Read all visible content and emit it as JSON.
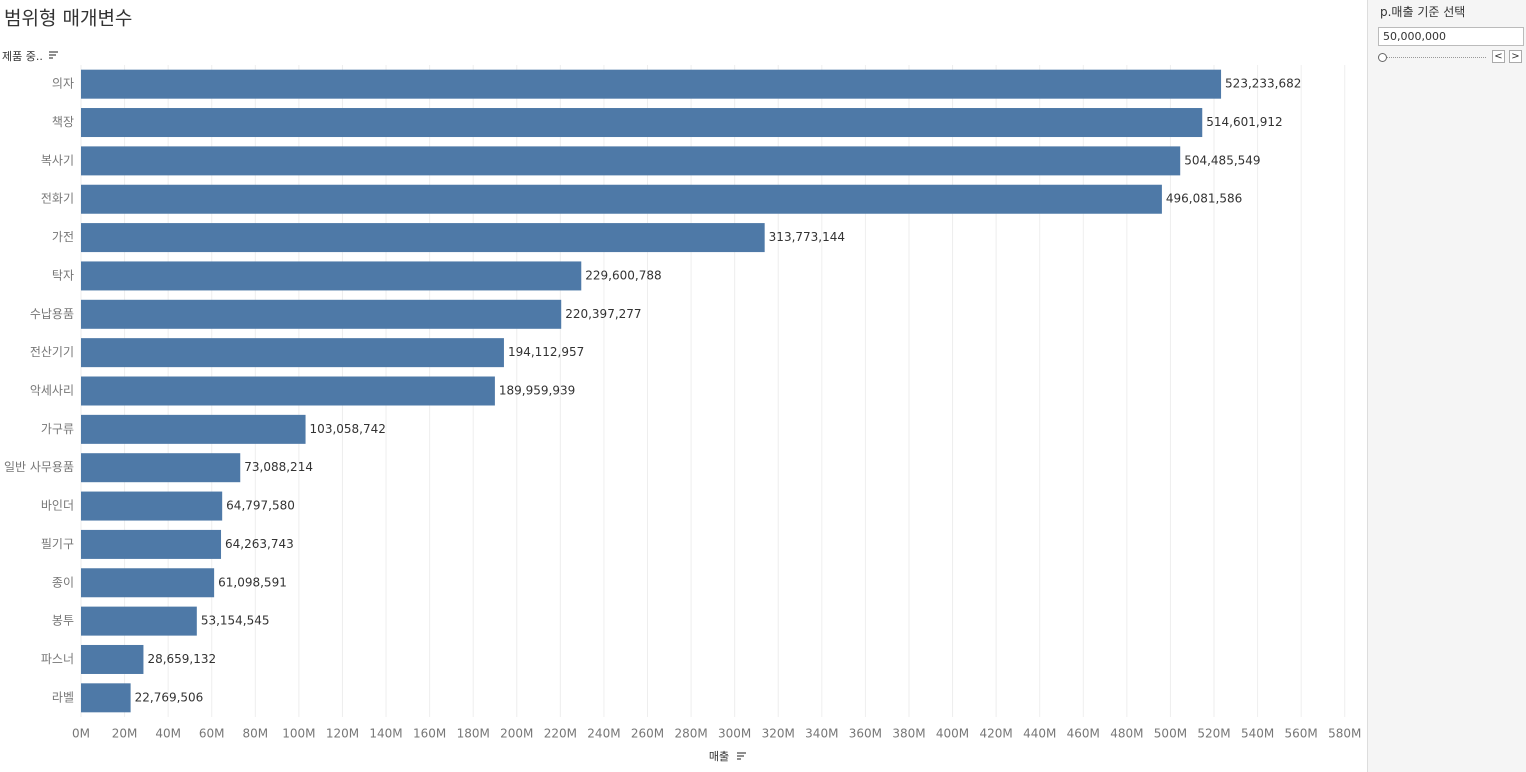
{
  "chart_data": {
    "type": "barh",
    "title": "범위형 매개변수",
    "y_label": "제품 중..",
    "x_label": "매출",
    "categories": [
      "의자",
      "책장",
      "복사기",
      "전화기",
      "가전",
      "탁자",
      "수납용품",
      "전산기기",
      "악세사리",
      "가구류",
      "일반 사무용품",
      "바인더",
      "필기구",
      "종이",
      "봉투",
      "파스너",
      "라벨"
    ],
    "values": [
      523233682,
      514601912,
      504485549,
      496081586,
      313773144,
      229600788,
      220397277,
      194112957,
      189959939,
      103058742,
      73088214,
      64797580,
      64263743,
      61098591,
      53154545,
      28659132,
      22769506
    ],
    "value_labels": [
      "523,233,682",
      "514,601,912",
      "504,485,549",
      "496,081,586",
      "313,773,144",
      "229,600,788",
      "220,397,277",
      "194,112,957",
      "189,959,939",
      "103,058,742",
      "73,088,214",
      "64,797,580",
      "64,263,743",
      "61,098,591",
      "53,154,545",
      "28,659,132",
      "22,769,506"
    ],
    "color": "#4e79a7",
    "xlim": [
      0,
      587000000
    ],
    "xticks": [
      {
        "value": 0,
        "label": "0M"
      },
      {
        "value": 20000000,
        "label": "20M"
      },
      {
        "value": 40000000,
        "label": "40M"
      },
      {
        "value": 60000000,
        "label": "60M"
      },
      {
        "value": 80000000,
        "label": "80M"
      },
      {
        "value": 100000000,
        "label": "100M"
      },
      {
        "value": 120000000,
        "label": "120M"
      },
      {
        "value": 140000000,
        "label": "140M"
      },
      {
        "value": 160000000,
        "label": "160M"
      },
      {
        "value": 180000000,
        "label": "180M"
      },
      {
        "value": 200000000,
        "label": "200M"
      },
      {
        "value": 220000000,
        "label": "220M"
      },
      {
        "value": 240000000,
        "label": "240M"
      },
      {
        "value": 260000000,
        "label": "260M"
      },
      {
        "value": 280000000,
        "label": "280M"
      },
      {
        "value": 300000000,
        "label": "300M"
      },
      {
        "value": 320000000,
        "label": "320M"
      },
      {
        "value": 340000000,
        "label": "340M"
      },
      {
        "value": 360000000,
        "label": "360M"
      },
      {
        "value": 380000000,
        "label": "380M"
      },
      {
        "value": 400000000,
        "label": "400M"
      },
      {
        "value": 420000000,
        "label": "420M"
      },
      {
        "value": 440000000,
        "label": "440M"
      },
      {
        "value": 460000000,
        "label": "460M"
      },
      {
        "value": 480000000,
        "label": "480M"
      },
      {
        "value": 500000000,
        "label": "500M"
      },
      {
        "value": 520000000,
        "label": "520M"
      },
      {
        "value": 540000000,
        "label": "540M"
      },
      {
        "value": 560000000,
        "label": "560M"
      },
      {
        "value": 580000000,
        "label": "580M"
      }
    ],
    "grid": true
  },
  "parameter": {
    "title": "p.매출 기준 선택",
    "value": "50,000,000"
  }
}
